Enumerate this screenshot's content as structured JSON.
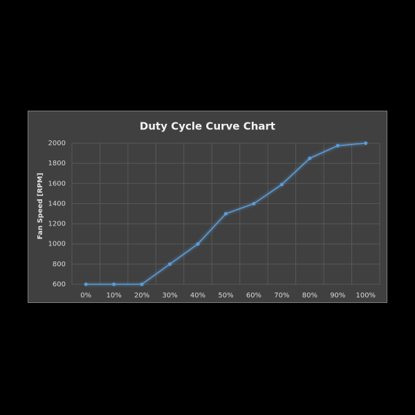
{
  "chart_data": {
    "type": "line",
    "title": "Duty Cycle Curve Chart",
    "y_label": "Fan Speed [RPM]",
    "categories": [
      "0%",
      "10%",
      "20%",
      "30%",
      "40%",
      "50%",
      "60%",
      "70%",
      "80%",
      "90%",
      "100%"
    ],
    "series": [
      {
        "color": "#5b9bd5",
        "values": [
          600,
          600,
          600,
          800,
          1000,
          1300,
          1400,
          1590,
          1850,
          1975,
          2000
        ]
      }
    ],
    "ylim": [
      600,
      2000
    ],
    "yticks": [
      600,
      800,
      1000,
      1200,
      1400,
      1600,
      1800,
      2000
    ],
    "grid": true
  }
}
